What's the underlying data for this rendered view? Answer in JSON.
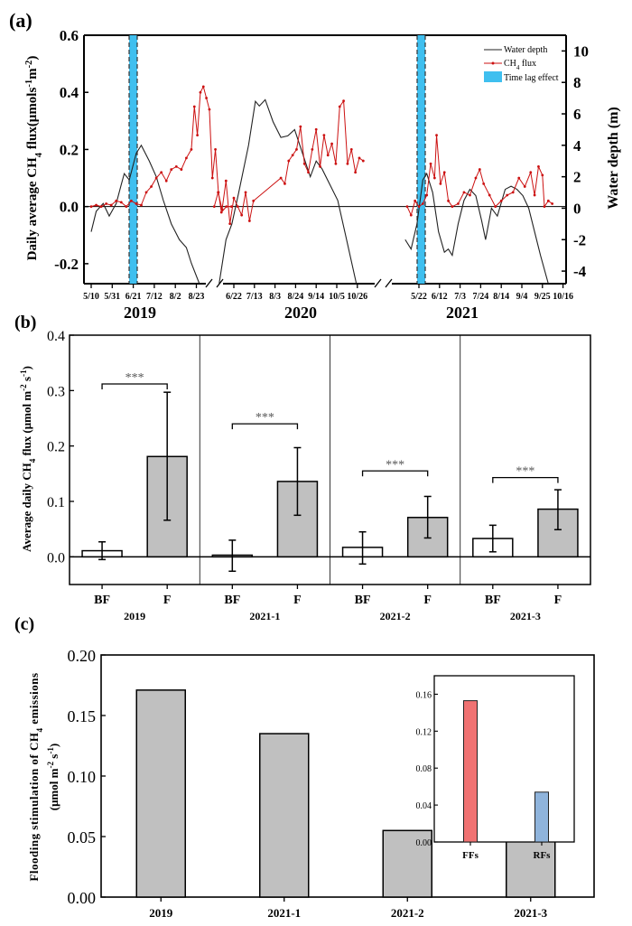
{
  "panel_labels": {
    "a": "(a)",
    "b": "(b)",
    "c": "(c)"
  },
  "colors": {
    "ch4_line": "#cc1111",
    "water_line": "#222222",
    "time_lag": "#3fbfef",
    "bar_gray": "#c0c0c0",
    "bar_white": "#ffffff",
    "inset_ff": "#f07272",
    "inset_rf": "#8fb4dc"
  },
  "chart_data": [
    {
      "id": "a",
      "type": "line",
      "ylabel_left": "Daily average CH4 flux(μmols-1m-2)",
      "ylabel_left_parts": [
        "Daily average CH",
        "4",
        " flux(μmols",
        "-1",
        "m",
        "-2",
        ")"
      ],
      "ylabel_right": "Water depth (m)",
      "ylim_left": [
        -0.27,
        0.6
      ],
      "yticks_left": [
        "0.6",
        "0.4",
        "0.2",
        "0.0",
        "-0.2"
      ],
      "yticks_left_values": [
        0.6,
        0.4,
        0.2,
        0.0,
        -0.2
      ],
      "ylim_right": [
        -4.8,
        11
      ],
      "yticks_right": [
        "10",
        "8",
        "6",
        "4",
        "2",
        "0",
        "-2",
        "-4"
      ],
      "yticks_right_values": [
        10,
        8,
        6,
        4,
        2,
        0,
        -2,
        -4
      ],
      "legend": {
        "position": "top-right",
        "entries": [
          "Water depth",
          "CH4 flux",
          "Time lag effect"
        ]
      },
      "segments": [
        {
          "year": "2019",
          "xticks": [
            "5/10",
            "5/31",
            "6/21",
            "7/12",
            "8/2",
            "8/23"
          ],
          "time_lag_window": [
            "6/22",
            "7/1"
          ],
          "ch4_flux": [
            [
              0,
              0.0
            ],
            [
              5,
              0.005
            ],
            [
              10,
              0.0
            ],
            [
              15,
              0.01
            ],
            [
              20,
              0.005
            ],
            [
              25,
              0.02
            ],
            [
              30,
              0.015
            ],
            [
              35,
              0.0
            ],
            [
              40,
              0.02
            ],
            [
              45,
              0.01
            ],
            [
              50,
              0.005
            ],
            [
              55,
              0.05
            ],
            [
              60,
              0.07
            ],
            [
              65,
              0.1
            ],
            [
              70,
              0.12
            ],
            [
              75,
              0.09
            ],
            [
              80,
              0.13
            ],
            [
              85,
              0.14
            ],
            [
              90,
              0.13
            ],
            [
              95,
              0.17
            ],
            [
              100,
              0.2
            ],
            [
              103,
              0.35
            ],
            [
              106,
              0.25
            ],
            [
              109,
              0.4
            ],
            [
              112,
              0.42
            ],
            [
              115,
              0.38
            ],
            [
              118,
              0.34
            ],
            [
              121,
              0.1
            ],
            [
              124,
              0.2
            ],
            [
              127,
              0.05
            ],
            [
              130,
              -0.02
            ],
            [
              135,
              0.0
            ],
            [
              140,
              0.0
            ]
          ],
          "water_depth": [
            [
              0,
              -1.5
            ],
            [
              5,
              -0.2
            ],
            [
              12,
              0.3
            ],
            [
              18,
              -0.5
            ],
            [
              25,
              0.3
            ],
            [
              30,
              1.5
            ],
            [
              33,
              2.2
            ],
            [
              38,
              1.8
            ],
            [
              45,
              3.5
            ],
            [
              50,
              4.0
            ],
            [
              58,
              3.0
            ],
            [
              65,
              2.0
            ],
            [
              72,
              0.5
            ],
            [
              80,
              -1.0
            ],
            [
              88,
              -2.0
            ],
            [
              95,
              -2.5
            ],
            [
              100,
              -3.5
            ],
            [
              108,
              -4.8
            ]
          ]
        },
        {
          "year": "2020",
          "xticks": [
            "6/22",
            "7/13",
            "8/3",
            "8/24",
            "9/14",
            "10/5",
            "10/26"
          ],
          "ch4_flux": [
            [
              -20,
              0.0
            ],
            [
              -16,
              0.05
            ],
            [
              -12,
              -0.01
            ],
            [
              -8,
              0.09
            ],
            [
              -4,
              -0.06
            ],
            [
              0,
              0.03
            ],
            [
              4,
              0.0
            ],
            [
              8,
              -0.03
            ],
            [
              12,
              0.05
            ],
            [
              16,
              -0.05
            ],
            [
              20,
              0.02
            ],
            [
              48,
              0.1
            ],
            [
              52,
              0.08
            ],
            [
              56,
              0.16
            ],
            [
              60,
              0.18
            ],
            [
              64,
              0.2
            ],
            [
              68,
              0.28
            ],
            [
              72,
              0.15
            ],
            [
              76,
              0.12
            ],
            [
              80,
              0.2
            ],
            [
              84,
              0.27
            ],
            [
              88,
              0.14
            ],
            [
              92,
              0.25
            ],
            [
              96,
              0.18
            ],
            [
              100,
              0.22
            ],
            [
              104,
              0.15
            ],
            [
              108,
              0.35
            ],
            [
              112,
              0.37
            ],
            [
              116,
              0.15
            ],
            [
              120,
              0.2
            ],
            [
              124,
              0.12
            ],
            [
              128,
              0.17
            ],
            [
              132,
              0.16
            ]
          ],
          "water_depth": [
            [
              -15,
              -4.8
            ],
            [
              -8,
              -2.0
            ],
            [
              -2,
              -1.0
            ],
            [
              5,
              1.0
            ],
            [
              15,
              4.0
            ],
            [
              22,
              6.8
            ],
            [
              26,
              6.5
            ],
            [
              32,
              6.9
            ],
            [
              40,
              5.5
            ],
            [
              48,
              4.5
            ],
            [
              55,
              4.6
            ],
            [
              62,
              5.0
            ],
            [
              70,
              3.5
            ],
            [
              78,
              2.0
            ],
            [
              84,
              3.0
            ],
            [
              90,
              2.5
            ],
            [
              98,
              1.5
            ],
            [
              106,
              0.5
            ],
            [
              115,
              -2.0
            ],
            [
              125,
              -4.8
            ]
          ]
        },
        {
          "year": "2021",
          "xticks": [
            "5/22",
            "6/12",
            "7/3",
            "7/24",
            "8/14",
            "9/4",
            "9/25",
            "10/16"
          ],
          "time_lag_window": [
            "5/22",
            "5/28"
          ],
          "ch4_flux": [
            [
              -12,
              0.0
            ],
            [
              -8,
              -0.03
            ],
            [
              -4,
              0.02
            ],
            [
              0,
              0.0
            ],
            [
              4,
              0.01
            ],
            [
              8,
              0.04
            ],
            [
              12,
              0.15
            ],
            [
              16,
              0.1
            ],
            [
              18,
              0.25
            ],
            [
              22,
              0.08
            ],
            [
              26,
              0.12
            ],
            [
              30,
              0.02
            ],
            [
              34,
              0.0
            ],
            [
              40,
              0.01
            ],
            [
              46,
              0.05
            ],
            [
              52,
              0.04
            ],
            [
              58,
              0.1
            ],
            [
              62,
              0.13
            ],
            [
              66,
              0.08
            ],
            [
              72,
              0.04
            ],
            [
              78,
              0.0
            ],
            [
              84,
              0.02
            ],
            [
              90,
              0.04
            ],
            [
              96,
              0.05
            ],
            [
              102,
              0.1
            ],
            [
              108,
              0.07
            ],
            [
              114,
              0.12
            ],
            [
              118,
              0.04
            ],
            [
              122,
              0.14
            ],
            [
              126,
              0.11
            ],
            [
              128,
              0.0
            ],
            [
              132,
              0.02
            ],
            [
              136,
              0.01
            ]
          ],
          "water_depth": [
            [
              -14,
              -2.0
            ],
            [
              -8,
              -2.6
            ],
            [
              -2,
              -1.0
            ],
            [
              4,
              1.8
            ],
            [
              8,
              2.2
            ],
            [
              14,
              1.0
            ],
            [
              20,
              -1.5
            ],
            [
              26,
              -2.8
            ],
            [
              30,
              -2.6
            ],
            [
              34,
              -3.0
            ],
            [
              40,
              -1.0
            ],
            [
              46,
              0.5
            ],
            [
              52,
              1.2
            ],
            [
              58,
              0.8
            ],
            [
              64,
              -0.8
            ],
            [
              68,
              -2.0
            ],
            [
              74,
              0.0
            ],
            [
              80,
              -0.5
            ],
            [
              88,
              1.2
            ],
            [
              94,
              1.4
            ],
            [
              100,
              1.2
            ],
            [
              106,
              0.8
            ],
            [
              112,
              0.0
            ],
            [
              118,
              -1.5
            ],
            [
              124,
              -3.0
            ],
            [
              132,
              -4.8
            ]
          ]
        }
      ]
    },
    {
      "id": "b",
      "type": "bar",
      "ylabel": "Average daily CH4 flux (μmol m-2 s-1)",
      "ylabel_parts": [
        "Average daily CH",
        "4",
        " flux (μmol m",
        "-2",
        " s",
        "-1",
        ")"
      ],
      "ylim": [
        -0.05,
        0.4
      ],
      "yticks": [
        "0.4",
        "0.3",
        "0.2",
        "0.1",
        "0.0"
      ],
      "yticks_values": [
        0.4,
        0.3,
        0.2,
        0.1,
        0.0
      ],
      "top_labels": [
        "2019",
        "2020",
        "2021"
      ],
      "groups": [
        {
          "name": "2019",
          "bars": [
            {
              "label": "BF",
              "value": 0.011,
              "err_low": -0.005,
              "err_high": 0.027
            },
            {
              "label": "F",
              "value": 0.181,
              "err_low": 0.066,
              "err_high": 0.297
            }
          ],
          "significance": "***"
        },
        {
          "name": "2021-1",
          "bars": [
            {
              "label": "BF",
              "value": 0.003,
              "err_low": -0.026,
              "err_high": 0.03
            },
            {
              "label": "F",
              "value": 0.136,
              "err_low": 0.075,
              "err_high": 0.197
            }
          ],
          "significance": "***"
        },
        {
          "name": "2021-2",
          "bars": [
            {
              "label": "BF",
              "value": 0.017,
              "err_low": -0.013,
              "err_high": 0.045
            },
            {
              "label": "F",
              "value": 0.071,
              "err_low": 0.034,
              "err_high": 0.109
            }
          ],
          "significance": "***"
        },
        {
          "name": "2021-3",
          "bars": [
            {
              "label": "BF",
              "value": 0.033,
              "err_low": 0.009,
              "err_high": 0.057
            },
            {
              "label": "F",
              "value": 0.086,
              "err_low": 0.049,
              "err_high": 0.121
            }
          ],
          "significance": "***"
        }
      ]
    },
    {
      "id": "c",
      "type": "bar",
      "ylabel_line1": "Flooding stimulation of CH4 emissions",
      "ylabel_line1_parts": [
        "Flooding stimulation of CH",
        "4",
        " emissions"
      ],
      "ylabel_line2": "(μmol m-2 s-1)",
      "ylabel_line2_parts": [
        "(μmol m",
        "-2",
        " s",
        "-1",
        ")"
      ],
      "ylim": [
        0,
        0.2
      ],
      "yticks": [
        "0.20",
        "0.15",
        "0.10",
        "0.05",
        "0.00"
      ],
      "yticks_values": [
        0.2,
        0.15,
        0.1,
        0.05,
        0.0
      ],
      "categories": [
        "2019",
        "2021-1",
        "2021-2",
        "2021-3"
      ],
      "values": [
        0.171,
        0.135,
        0.055,
        0.053
      ],
      "inset": {
        "type": "bar",
        "ylim": [
          0,
          0.18
        ],
        "yticks": [
          "0.16",
          "0.12",
          "0.08",
          "0.04",
          "0.00"
        ],
        "yticks_values": [
          0.16,
          0.12,
          0.08,
          0.04,
          0.0
        ],
        "categories": [
          "FFs",
          "RFs"
        ],
        "values": [
          0.153,
          0.054
        ]
      }
    }
  ]
}
